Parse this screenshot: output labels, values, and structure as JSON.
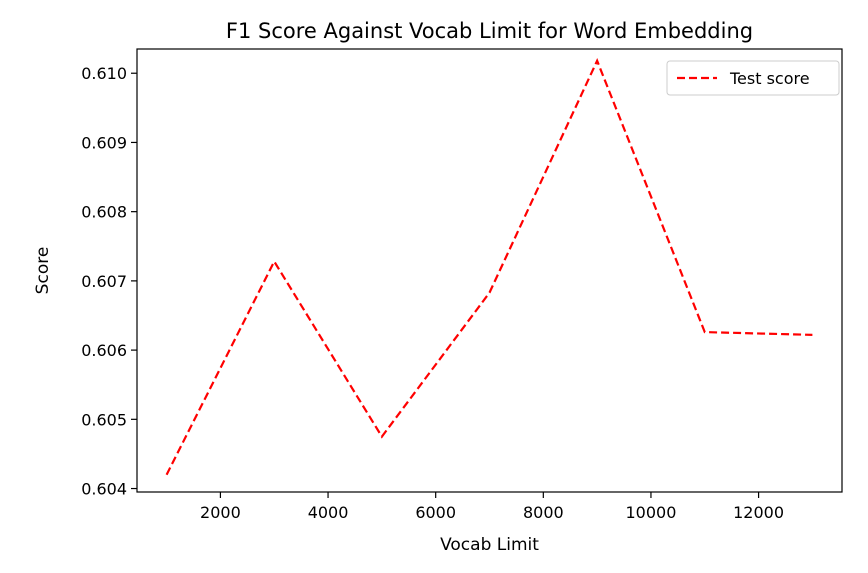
{
  "chart_data": {
    "type": "line",
    "title": "F1 Score Against Vocab Limit for Word Embedding",
    "xlabel": "Vocab Limit",
    "ylabel": "Score",
    "xlim": [
      450,
      13550
    ],
    "ylim": [
      0.60395,
      0.61035
    ],
    "xticks": [
      2000,
      4000,
      6000,
      8000,
      10000,
      12000
    ],
    "xtick_labels": [
      "2000",
      "4000",
      "6000",
      "8000",
      "10000",
      "12000"
    ],
    "yticks": [
      0.604,
      0.605,
      0.606,
      0.607,
      0.608,
      0.609,
      0.61
    ],
    "ytick_labels": [
      "0.604",
      "0.605",
      "0.606",
      "0.607",
      "0.608",
      "0.609",
      "0.610"
    ],
    "grid": false,
    "legend_position": "top-right",
    "x": [
      1000,
      3000,
      5000,
      7000,
      9000,
      11000,
      13000
    ],
    "series": [
      {
        "name": "Test score",
        "values": [
          0.6042,
          0.60728,
          0.60475,
          0.60683,
          0.61018,
          0.60626,
          0.60622
        ],
        "color": "#ff0000",
        "style": "dashed"
      }
    ]
  }
}
